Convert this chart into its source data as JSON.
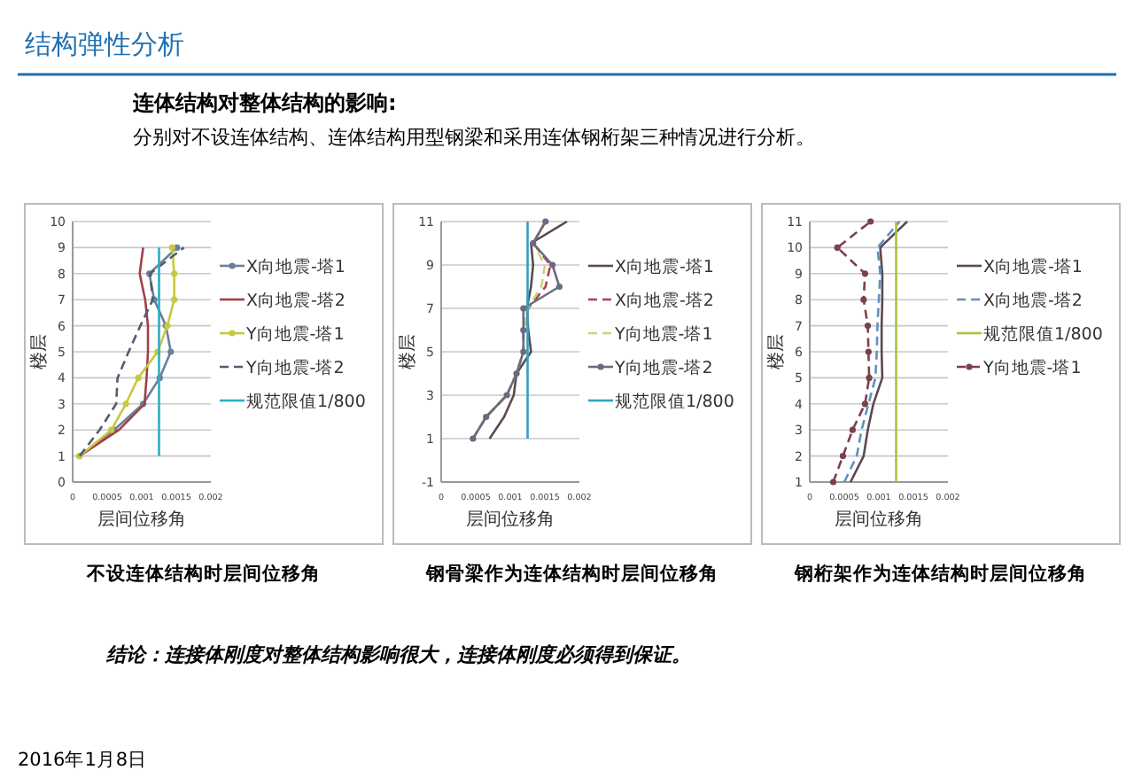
{
  "chart_data": [
    {
      "type": "line",
      "title": "不设连体结构时层间位移角",
      "xlabel": "层间位移角",
      "ylabel": "楼层",
      "xlim": [
        0,
        0.002
      ],
      "xticks": [
        0,
        0.0005,
        0.001,
        0.0015,
        0.002
      ],
      "ylim": [
        0,
        10
      ],
      "yticks": [
        0,
        1,
        2,
        3,
        4,
        5,
        6,
        7,
        8,
        9,
        10
      ],
      "grid": "y",
      "legend": "right",
      "annotations": [
        "结构弹性分析",
        "连体结构对整体结构的影响:",
        "分别对不设连体结构、连体结构用型钢梁和采用连体钢桁架三种情况进行分析。"
      ],
      "series": [
        {
          "name": "X向地震-塔1",
          "color": "#6a7f9a",
          "marker": "circle",
          "line_style": "solid",
          "x": [
            0.0001,
            0.0006,
            0.00102,
            0.00126,
            0.00142,
            0.00135,
            0.00118,
            0.00111,
            0.00151
          ],
          "values": [
            1,
            2,
            3,
            4,
            5,
            6,
            7,
            8,
            9
          ]
        },
        {
          "name": "X向地震-塔2",
          "color": "#a0404a",
          "line_style": "solid",
          "x": [
            0.0001,
            0.00067,
            0.00104,
            0.00107,
            0.00109,
            0.00109,
            0.00105,
            0.00097,
            0.00102
          ],
          "values": [
            1,
            2,
            3,
            4,
            5,
            6,
            7,
            8,
            9
          ]
        },
        {
          "name": "Y向地震-塔1",
          "color": "#c8c840",
          "marker": "circle",
          "line_style": "solid",
          "x": [
            0.0001,
            0.00056,
            0.00077,
            0.00095,
            0.00123,
            0.00137,
            0.00147,
            0.00147,
            0.00144
          ],
          "values": [
            1,
            2,
            3,
            4,
            5,
            6,
            7,
            8,
            9
          ]
        },
        {
          "name": "Y向地震-塔2",
          "color": "#555a70",
          "line_style": "dashed",
          "x": [
            0.0001,
            0.00039,
            0.00063,
            0.00065,
            0.00081,
            0.00098,
            0.00116,
            0.00112,
            0.00161
          ],
          "values": [
            1,
            2,
            3,
            4,
            5,
            6,
            7,
            8,
            9
          ]
        },
        {
          "name": "规范限值1/800",
          "color": "#2ab0c0",
          "line_style": "solid",
          "x": [
            0.00125,
            0.00125
          ],
          "values": [
            1,
            9
          ]
        }
      ]
    },
    {
      "type": "line",
      "title": "钢骨梁作为连体结构时层间位移角",
      "xlabel": "层间位移角",
      "ylabel": "楼层",
      "xlim": [
        0,
        0.002
      ],
      "xticks": [
        0,
        0.0005,
        0.001,
        0.0015,
        0.002
      ],
      "ylim": [
        -1,
        11
      ],
      "yticks": [
        -1,
        1,
        3,
        5,
        7,
        9,
        11
      ],
      "grid": "y",
      "legend": "right",
      "series": [
        {
          "name": "X向地震-塔1",
          "color": "#5a4a50",
          "line_style": "solid",
          "x": [
            0.0007,
            0.00091,
            0.00105,
            0.00109,
            0.0013,
            0.00126,
            0.00124,
            0.0013,
            0.00133,
            0.0013,
            0.00182
          ],
          "values": [
            1,
            2,
            3,
            4,
            5,
            6,
            7,
            8,
            9,
            10,
            11
          ]
        },
        {
          "name": "X向地震-塔2",
          "color": "#b04050",
          "line_style": "dashed",
          "x": [
            0.00046,
            0.00065,
            0.00095,
            0.00109,
            0.00119,
            0.00119,
            0.00126,
            0.00151,
            0.00158,
            0.00133,
            0.00151
          ],
          "values": [
            1,
            2,
            3,
            4,
            5,
            6,
            7,
            8,
            9,
            10,
            11
          ]
        },
        {
          "name": "Y向地震-塔1",
          "color": "#d0d080",
          "line_style": "dashed",
          "x": [
            0.00046,
            0.00065,
            0.00095,
            0.00109,
            0.00119,
            0.00119,
            0.00125,
            0.00145,
            0.0015,
            0.00133,
            0.00151
          ],
          "values": [
            1,
            2,
            3,
            4,
            5,
            6,
            7,
            8,
            9,
            10,
            11
          ]
        },
        {
          "name": "Y向地震-塔2",
          "color": "#6a6a80",
          "marker": "circle",
          "line_style": "solid",
          "x": [
            0.00046,
            0.00065,
            0.00095,
            0.00109,
            0.00119,
            0.00119,
            0.00119,
            0.00171,
            0.00161,
            0.00133,
            0.00151
          ],
          "values": [
            1,
            2,
            3,
            4,
            5,
            6,
            7,
            8,
            9,
            10,
            11
          ]
        },
        {
          "name": "规范限值1/800",
          "color": "#30a0c0",
          "line_style": "solid",
          "x": [
            0.00125,
            0.00125
          ],
          "values": [
            1,
            11
          ]
        }
      ]
    },
    {
      "type": "line",
      "title": "钢桁架作为连体结构时层间位移角",
      "xlabel": "层间位移角",
      "ylabel": "楼层",
      "xlim": [
        0,
        0.002
      ],
      "xticks": [
        0,
        0.0005,
        0.001,
        0.0015,
        0.002
      ],
      "ylim": [
        1,
        11
      ],
      "yticks": [
        1,
        2,
        3,
        4,
        5,
        6,
        7,
        8,
        9,
        10,
        11
      ],
      "grid": "y",
      "legend": "right",
      "annotations": [
        "结论：连接体刚度对整体结构影响很大，连接体刚度必须得到保证。",
        "2016年1月8日"
      ],
      "series": [
        {
          "name": "X向地震-塔1",
          "color": "#5a4a50",
          "line_style": "solid",
          "x": [
            0.00059,
            0.00078,
            0.00084,
            0.00092,
            0.00105,
            0.00104,
            0.00104,
            0.00105,
            0.00105,
            0.00102,
            0.00141
          ],
          "values": [
            1,
            2,
            3,
            4,
            5,
            6,
            7,
            8,
            9,
            10,
            11
          ]
        },
        {
          "name": "X向地震-塔2",
          "color": "#6090c0",
          "line_style": "dashed",
          "x": [
            0.0005,
            0.00068,
            0.00075,
            0.00085,
            0.00095,
            0.00097,
            0.00098,
            0.001,
            0.00102,
            0.00098,
            0.0013
          ],
          "values": [
            1,
            2,
            3,
            4,
            5,
            6,
            7,
            8,
            9,
            10,
            11
          ]
        },
        {
          "name": "规范限值1/800",
          "color": "#b0c040",
          "line_style": "solid",
          "x": [
            0.00125,
            0.00125
          ],
          "values": [
            1,
            11
          ]
        },
        {
          "name": "Y向地震-塔1",
          "color": "#7a4050",
          "marker": "circle",
          "line_style": "dashed",
          "x": [
            0.00034,
            0.00048,
            0.00062,
            0.0008,
            0.00086,
            0.00085,
            0.00084,
            0.00078,
            0.0008,
            0.0004,
            0.00088
          ],
          "values": [
            1,
            2,
            3,
            4,
            5,
            6,
            7,
            8,
            9,
            10,
            11
          ]
        }
      ]
    }
  ]
}
